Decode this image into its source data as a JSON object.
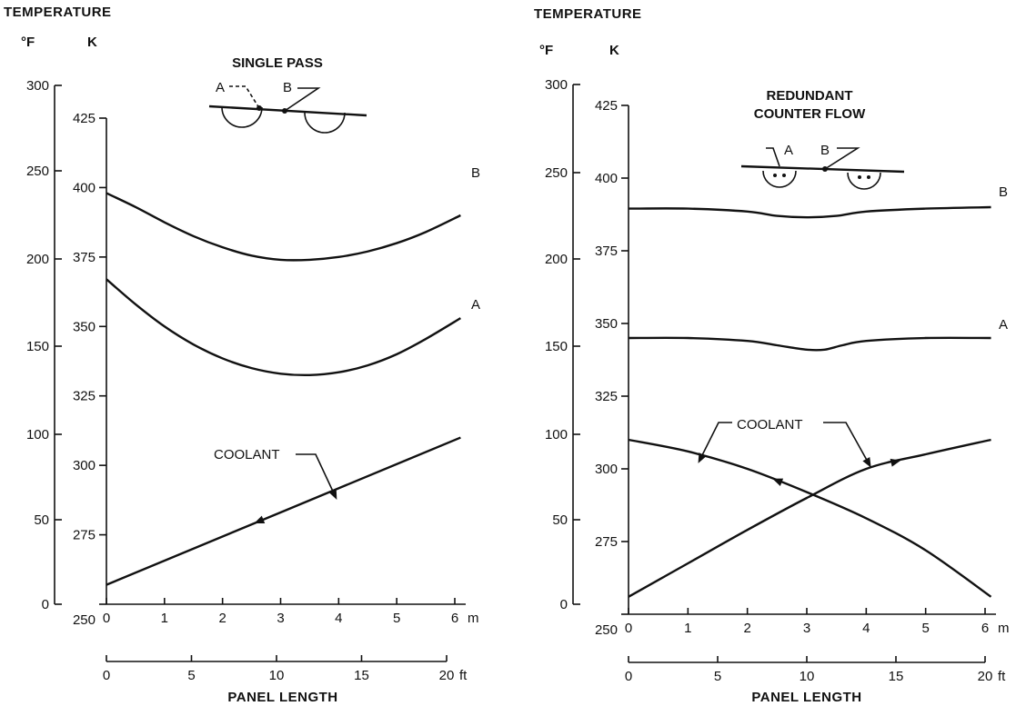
{
  "chart_data": [
    {
      "type": "line",
      "panel": "left",
      "title": "SINGLE PASS",
      "ylabel": "TEMPERATURE",
      "y_units": {
        "fahrenheit": "°F",
        "kelvin": "K"
      },
      "xlabel": "PANEL LENGTH",
      "x_units": {
        "meters": "m",
        "feet": "ft"
      },
      "axes": {
        "fahrenheit": {
          "range": [
            0,
            300
          ],
          "ticks": [
            "0",
            "50",
            "100",
            "150",
            "200",
            "250",
            "300"
          ]
        },
        "kelvin": {
          "range": [
            250,
            425
          ],
          "ticks": [
            "250",
            "275",
            "300",
            "325",
            "350",
            "375",
            "400",
            "425"
          ]
        },
        "meters": {
          "range": [
            0,
            6
          ],
          "ticks": [
            "0",
            "1",
            "2",
            "3",
            "4",
            "5",
            "6"
          ]
        },
        "feet": {
          "range": [
            0,
            20
          ],
          "ticks": [
            "0",
            "5",
            "10",
            "15",
            "20"
          ]
        }
      },
      "series": [
        {
          "name": "B",
          "x": [
            0,
            0.5,
            1,
            1.5,
            2,
            2.5,
            3,
            3.5,
            4,
            4.5,
            5,
            5.5,
            6.1
          ],
          "y": [
            398,
            393,
            387.5,
            382.5,
            378.5,
            375.5,
            374,
            374,
            375,
            377,
            380,
            384,
            390
          ]
        },
        {
          "name": "A",
          "x": [
            0,
            0.5,
            1,
            1.5,
            2,
            2.5,
            3,
            3.5,
            4,
            4.5,
            5,
            5.5,
            6.1
          ],
          "y": [
            367,
            358,
            350,
            343.5,
            338.5,
            335,
            333,
            332.5,
            333.5,
            336,
            340,
            345.5,
            353
          ]
        },
        {
          "name": "COOLANT",
          "x": [
            0,
            6.1
          ],
          "y": [
            257,
            310
          ],
          "flow": "forward"
        }
      ],
      "annotations": [
        "A",
        "B",
        "COOLANT"
      ],
      "inset_labels": [
        "A",
        "B"
      ]
    },
    {
      "type": "line",
      "panel": "right",
      "title": "REDUNDANT\nCOUNTER FLOW",
      "title_lines": [
        "REDUNDANT",
        "COUNTER FLOW"
      ],
      "ylabel": "TEMPERATURE",
      "y_units": {
        "fahrenheit": "°F",
        "kelvin": "K"
      },
      "xlabel": "PANEL LENGTH",
      "x_units": {
        "meters": "m",
        "feet": "ft"
      },
      "axes": {
        "fahrenheit": {
          "range": [
            0,
            300
          ],
          "ticks": [
            "0",
            "50",
            "100",
            "150",
            "200",
            "250",
            "300"
          ]
        },
        "kelvin": {
          "range": [
            250,
            425
          ],
          "ticks": [
            "250",
            "275",
            "300",
            "325",
            "350",
            "375",
            "400",
            "425"
          ]
        },
        "meters": {
          "range": [
            0,
            6
          ],
          "ticks": [
            "0",
            "1",
            "2",
            "3",
            "4",
            "5",
            "6"
          ]
        },
        "feet": {
          "range": [
            0,
            20
          ],
          "ticks": [
            "0",
            "5",
            "10",
            "15",
            "20"
          ]
        }
      },
      "series": [
        {
          "name": "B",
          "x": [
            0,
            1,
            2,
            2.5,
            3,
            3.5,
            4,
            5,
            6.1
          ],
          "y": [
            389.5,
            389.5,
            388.5,
            387,
            386.5,
            387,
            388.5,
            389.5,
            390
          ]
        },
        {
          "name": "A",
          "x": [
            0,
            1,
            2,
            2.5,
            3,
            3.3,
            3.6,
            4,
            5,
            6.1
          ],
          "y": [
            345,
            345,
            344,
            342.5,
            341,
            341,
            342.5,
            344,
            345,
            345
          ]
        },
        {
          "name": "COOLANT",
          "x": [
            0,
            1,
            2,
            3,
            4,
            5,
            6.1
          ],
          "y": [
            310,
            306,
            300,
            292,
            283,
            272,
            256
          ],
          "flow": "reverse"
        },
        {
          "name": "COOLANT",
          "x": [
            0,
            1,
            2,
            3,
            4,
            5,
            6.1
          ],
          "y": [
            256,
            267.5,
            279,
            290,
            300,
            305,
            310
          ],
          "flow": "forward"
        }
      ],
      "annotations": [
        "A",
        "B",
        "COOLANT"
      ],
      "inset_labels": [
        "A",
        "B"
      ]
    }
  ]
}
